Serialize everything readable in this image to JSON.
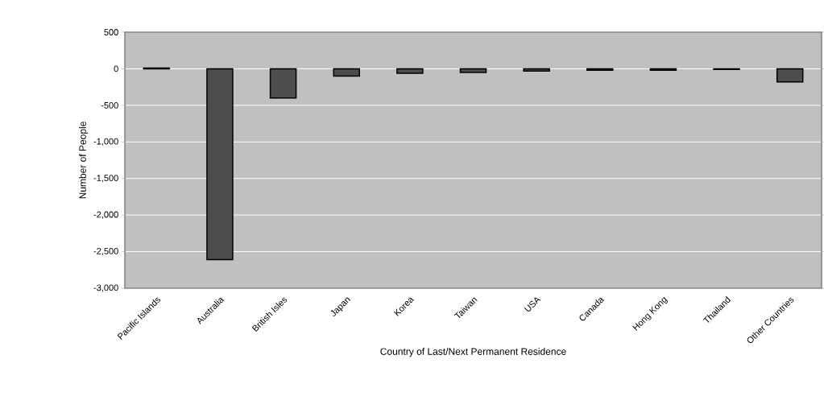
{
  "chart_data": {
    "type": "bar",
    "xlabel": "Country of Last/Next Permanent Residence",
    "ylabel": "Number of People",
    "categories": [
      "Pacific Islands",
      "Australia",
      "British Isles",
      "Japan",
      "Korea",
      "Taiwan",
      "USA",
      "Canada",
      "Hong Kong",
      "Thailand",
      "Other Countries"
    ],
    "values": [
      10,
      -2610,
      -400,
      -100,
      -60,
      -50,
      -30,
      -20,
      -20,
      -10,
      -180
    ],
    "color": "#4d4d4d",
    "ylim": [
      -3000,
      500
    ],
    "yticks": [
      {
        "value": -3000,
        "label": "-3,000"
      },
      {
        "value": -2500,
        "label": "-2,500"
      },
      {
        "value": -2000,
        "label": "-2,000"
      },
      {
        "value": -1500,
        "label": "-1,500"
      },
      {
        "value": -1000,
        "label": "-1,000"
      },
      {
        "value": -500,
        "label": "-500"
      },
      0,
      500
    ],
    "grid": "y"
  }
}
